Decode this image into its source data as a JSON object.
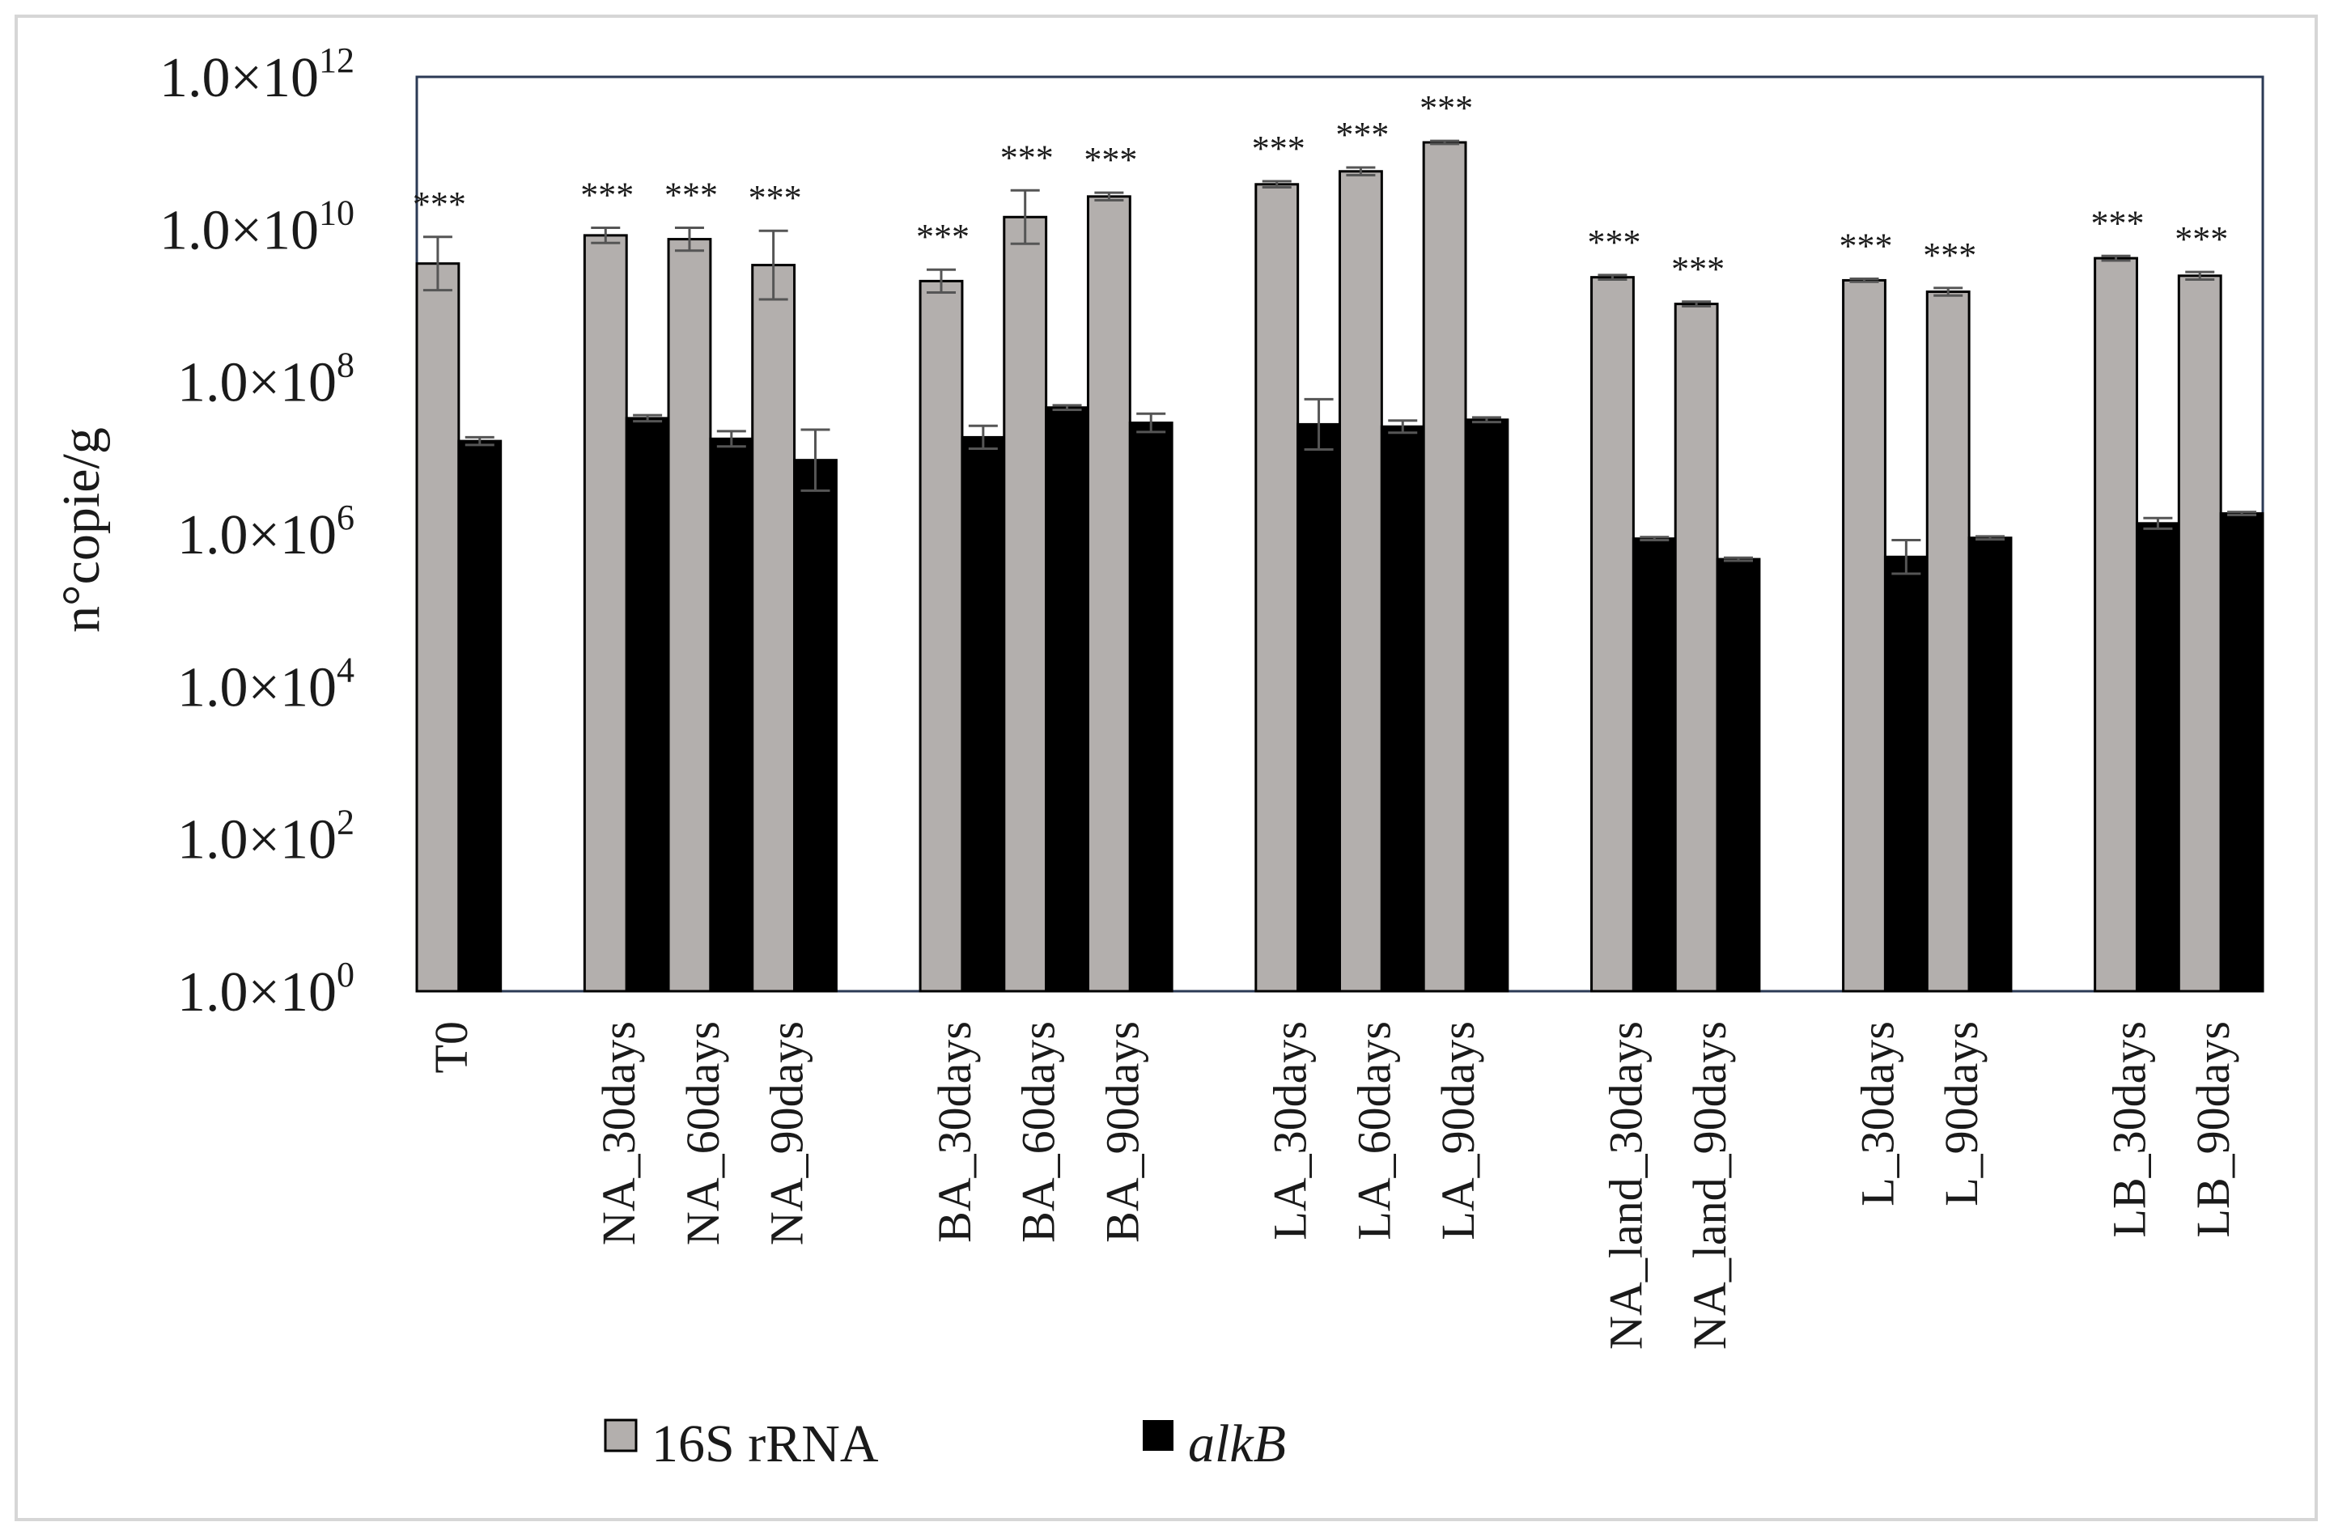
{
  "chart_data": {
    "type": "bar",
    "scale": "log",
    "ylabel": "n°copie/g",
    "ylim": [
      0,
      12
    ],
    "yticks": [
      {
        "mant": "1.0×10",
        "exp": "0"
      },
      {
        "mant": "1.0×10",
        "exp": "2"
      },
      {
        "mant": "1.0×10",
        "exp": "4"
      },
      {
        "mant": "1.0×10",
        "exp": "6"
      },
      {
        "mant": "1.0×10",
        "exp": "8"
      },
      {
        "mant": "1.0×10",
        "exp": "10"
      },
      {
        "mant": "1.0×10",
        "exp": "12"
      }
    ],
    "series": [
      {
        "name": "16S rRNA",
        "italic": false,
        "color": "#b3afad"
      },
      {
        "name": "alkB",
        "italic": true,
        "color": "#000000"
      }
    ],
    "categories": [
      {
        "label": "T0",
        "slot": 0,
        "s16": 9.55,
        "s16_err": 0.35,
        "alk": 7.22,
        "alk_err": 0.05,
        "sig": "***"
      },
      {
        "label": "NA_30days",
        "slot": 2,
        "s16": 9.92,
        "s16_err": 0.1,
        "alk": 7.52,
        "alk_err": 0.04,
        "sig": "***"
      },
      {
        "label": "NA_60days",
        "slot": 3,
        "s16": 9.87,
        "s16_err": 0.15,
        "alk": 7.25,
        "alk_err": 0.1,
        "sig": "***"
      },
      {
        "label": "NA_90days",
        "slot": 4,
        "s16": 9.53,
        "s16_err": 0.45,
        "alk": 6.97,
        "alk_err": 0.4,
        "sig": "***"
      },
      {
        "label": "BA_30days",
        "slot": 6,
        "s16": 9.32,
        "s16_err": 0.15,
        "alk": 7.27,
        "alk_err": 0.15,
        "sig": "***"
      },
      {
        "label": "BA_60days",
        "slot": 7,
        "s16": 10.16,
        "s16_err": 0.35,
        "alk": 7.66,
        "alk_err": 0.03,
        "sig": "***"
      },
      {
        "label": "BA_90days",
        "slot": 8,
        "s16": 10.43,
        "s16_err": 0.05,
        "alk": 7.46,
        "alk_err": 0.12,
        "sig": "***"
      },
      {
        "label": "LA_30days",
        "slot": 10,
        "s16": 10.59,
        "s16_err": 0.04,
        "alk": 7.44,
        "alk_err": 0.33,
        "sig": "***"
      },
      {
        "label": "LA_60days",
        "slot": 11,
        "s16": 10.76,
        "s16_err": 0.05,
        "alk": 7.41,
        "alk_err": 0.08,
        "sig": "***"
      },
      {
        "label": "LA_90days",
        "slot": 12,
        "s16": 11.14,
        "s16_err": 0.02,
        "alk": 7.5,
        "alk_err": 0.03,
        "sig": "***"
      },
      {
        "label": "NA_land_30days",
        "slot": 14,
        "s16": 9.37,
        "s16_err": 0.03,
        "alk": 5.94,
        "alk_err": 0.02,
        "sig": "***"
      },
      {
        "label": "NA_land_90days",
        "slot": 15,
        "s16": 9.02,
        "s16_err": 0.03,
        "alk": 5.67,
        "alk_err": 0.02,
        "sig": "***"
      },
      {
        "label": "L_30days",
        "slot": 17,
        "s16": 9.33,
        "s16_err": 0.02,
        "alk": 5.7,
        "alk_err": 0.22,
        "sig": "***"
      },
      {
        "label": "L_90days",
        "slot": 18,
        "s16": 9.18,
        "s16_err": 0.05,
        "alk": 5.95,
        "alk_err": 0.02,
        "sig": "***"
      },
      {
        "label": "LB_30days",
        "slot": 20,
        "s16": 9.62,
        "s16_err": 0.03,
        "alk": 6.14,
        "alk_err": 0.07,
        "sig": "***"
      },
      {
        "label": "LB_90days",
        "slot": 21,
        "s16": 9.39,
        "s16_err": 0.05,
        "alk": 6.27,
        "alk_err": 0.02,
        "sig": "***"
      }
    ]
  }
}
